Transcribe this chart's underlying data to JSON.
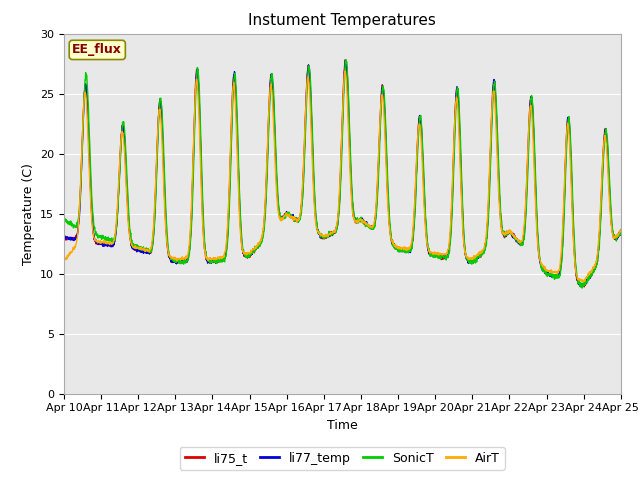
{
  "title": "Instument Temperatures",
  "xlabel": "Time",
  "ylabel": "Temperature (C)",
  "ylim": [
    0,
    30
  ],
  "x_tick_labels": [
    "Apr 10",
    "Apr 11",
    "Apr 12",
    "Apr 13",
    "Apr 14",
    "Apr 15",
    "Apr 16",
    "Apr 17",
    "Apr 18",
    "Apr 19",
    "Apr 20",
    "Apr 21",
    "Apr 22",
    "Apr 23",
    "Apr 24",
    "Apr 25"
  ],
  "annotation_text": "EE_flux",
  "annotation_bg": "#ffffcc",
  "annotation_border": "#888800",
  "fig_bg": "#ffffff",
  "plot_bg": "#e8e8e8",
  "line_colors": {
    "li75_t": "#dd0000",
    "li77_temp": "#0000dd",
    "SonicT": "#00cc00",
    "AirT": "#ffaa00"
  },
  "title_fontsize": 11,
  "axis_label_fontsize": 9,
  "tick_fontsize": 8,
  "legend_fontsize": 9,
  "daily_peaks": [
    29.0,
    23.5,
    21.5,
    26.5,
    27.5,
    26.0,
    27.0,
    27.5,
    28.0,
    24.0,
    22.5,
    27.5,
    25.0,
    24.5,
    22.0,
    22.0
  ],
  "daily_troughs": [
    13.0,
    12.5,
    12.0,
    11.0,
    11.0,
    11.5,
    15.0,
    13.0,
    14.5,
    12.0,
    11.5,
    11.0,
    13.5,
    10.0,
    9.0,
    13.5
  ],
  "peak_sharpness": 6.0,
  "n_pts_per_day": 144
}
